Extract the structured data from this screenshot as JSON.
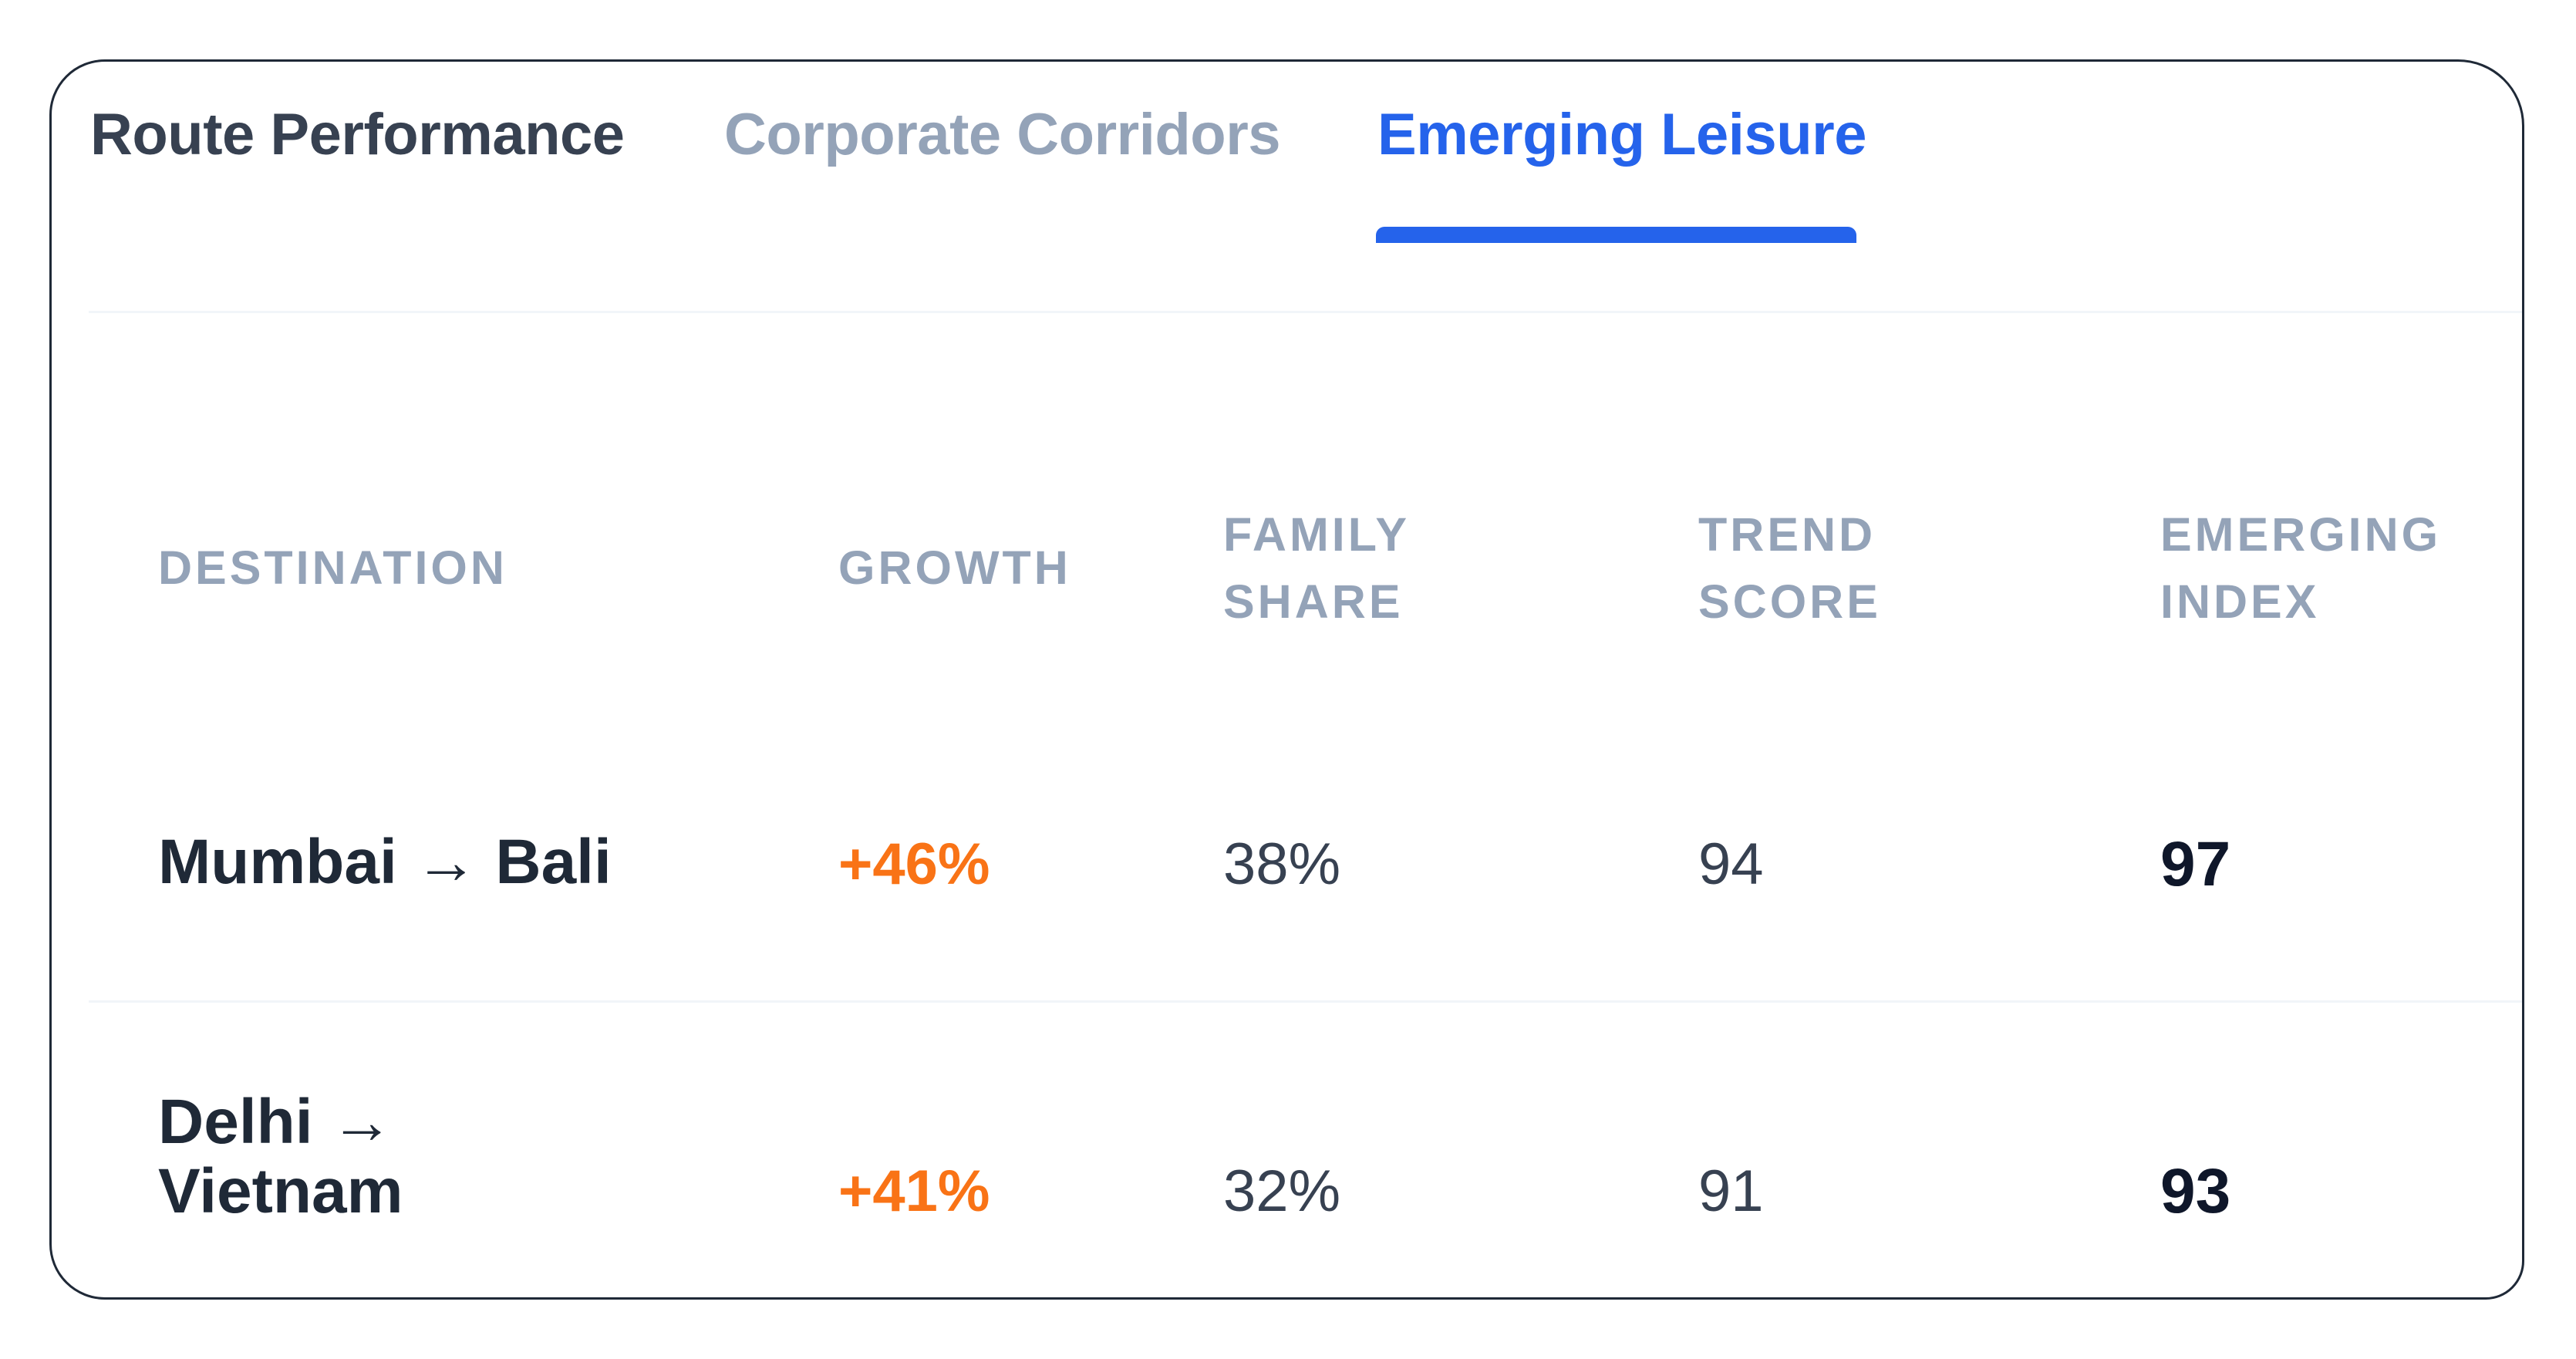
{
  "tabs": [
    {
      "label": "Route Performance",
      "active": false
    },
    {
      "label": "Corporate Corridors",
      "active": false
    },
    {
      "label": "Emerging Leisure",
      "active": true
    }
  ],
  "table": {
    "headers": {
      "destination": "DESTINATION",
      "growth": "GROWTH",
      "family_share_line1": "FAMILY",
      "family_share_line2": "SHARE",
      "trend_score_line1": "TREND",
      "trend_score_line2": "SCORE",
      "emerging_index_line1": "EMERGING",
      "emerging_index_line2": "INDEX"
    },
    "rows": [
      {
        "destination": "Mumbai → Bali",
        "growth": "+46%",
        "family_share": "38%",
        "trend_score": "94",
        "emerging_index": "97"
      },
      {
        "destination": "Delhi → Vietnam",
        "growth": "+41%",
        "family_share": "32%",
        "trend_score": "91",
        "emerging_index": "93"
      }
    ]
  },
  "colors": {
    "accent": "#2563eb",
    "growth_positive": "#f97316",
    "header_text": "#94a3b8",
    "inactive_tab": "#94a3b8",
    "default_tab": "#374151",
    "primary_text": "#1f2937",
    "divider": "#f1f5f9"
  }
}
